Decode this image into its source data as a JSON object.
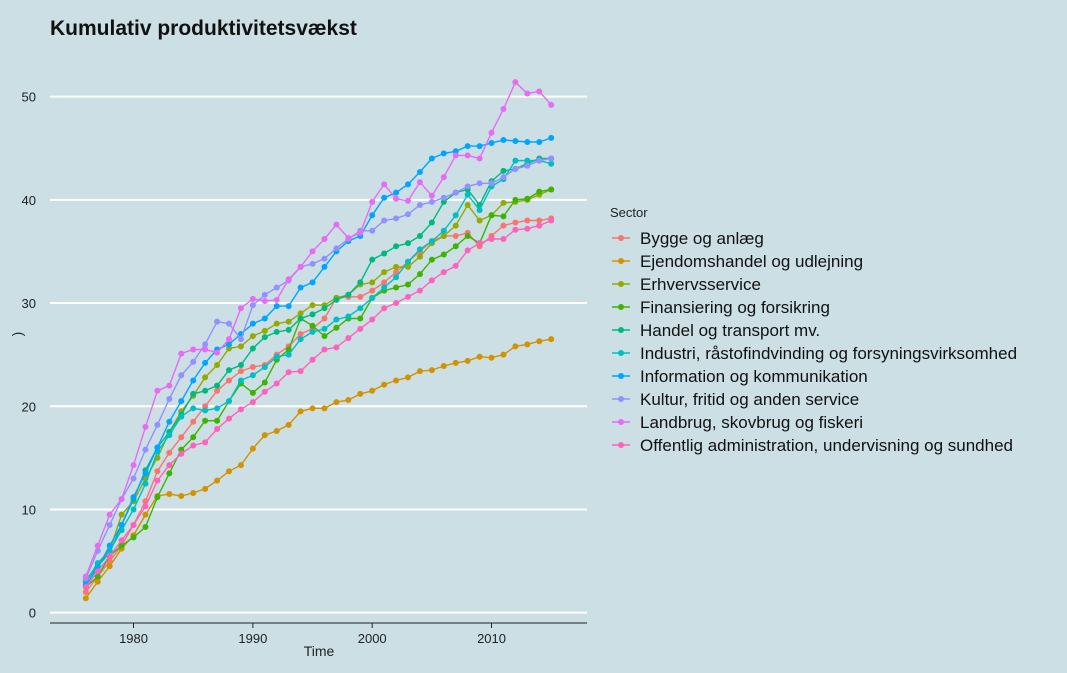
{
  "chart_data": {
    "type": "line",
    "title": "Kumulativ produktivitetsvækst",
    "xlabel": "Time",
    "ylabel": ")",
    "legend_title": "Sector",
    "legend_position": "right",
    "grid": "horizontal major",
    "xlim": [
      1973,
      2018
    ],
    "ylim": [
      -1,
      55
    ],
    "x_ticks": [
      1980,
      1990,
      2000,
      2010
    ],
    "y_ticks": [
      0,
      10,
      20,
      30,
      40,
      50
    ],
    "x": [
      1976,
      1977,
      1978,
      1979,
      1980,
      1981,
      1982,
      1983,
      1984,
      1985,
      1986,
      1987,
      1988,
      1989,
      1990,
      1991,
      1992,
      1993,
      1994,
      1995,
      1996,
      1997,
      1998,
      1999,
      2000,
      2001,
      2002,
      2003,
      2004,
      2005,
      2006,
      2007,
      2008,
      2009,
      2010,
      2011,
      2012,
      2013,
      2014,
      2015
    ],
    "series": [
      {
        "name": "Bygge og anlæg",
        "color": "#f8766d",
        "values": [
          2.0,
          3.5,
          5.0,
          6.5,
          8.5,
          10.8,
          13.7,
          15.5,
          17.0,
          18.5,
          20.0,
          21.5,
          22.5,
          23.4,
          23.8,
          24.0,
          25.0,
          25.8,
          27.0,
          27.5,
          28.5,
          30.5,
          30.6,
          30.6,
          31.2,
          32.0,
          33.0,
          34.0,
          35.0,
          36.0,
          36.5,
          36.5,
          36.8,
          35.5,
          36.5,
          37.5,
          37.8,
          38.0,
          38.0,
          38.2
        ]
      },
      {
        "name": "Ejendomshandel og udlejning",
        "color": "#d39200",
        "values": [
          1.4,
          3.0,
          4.5,
          6.2,
          7.5,
          9.5,
          11.3,
          11.5,
          11.3,
          11.6,
          12.0,
          12.8,
          13.7,
          14.3,
          15.9,
          17.2,
          17.6,
          18.2,
          19.5,
          19.8,
          19.8,
          20.4,
          20.6,
          21.2,
          21.5,
          22.1,
          22.5,
          22.8,
          23.4,
          23.5,
          23.9,
          24.2,
          24.4,
          24.8,
          24.7,
          25.0,
          25.8,
          26.0,
          26.3,
          26.5
        ]
      },
      {
        "name": "Erhvervsservice",
        "color": "#93aa00",
        "values": [
          3.2,
          4.5,
          6.0,
          9.5,
          10.8,
          13.0,
          15.0,
          17.5,
          19.5,
          21.0,
          22.8,
          24.0,
          25.6,
          25.8,
          26.8,
          27.3,
          28.0,
          28.2,
          29.0,
          29.8,
          29.8,
          30.5,
          30.8,
          31.8,
          32.0,
          33.0,
          33.5,
          33.5,
          34.5,
          35.8,
          36.5,
          37.5,
          39.5,
          38.0,
          38.5,
          39.7,
          39.8,
          40.0,
          40.5,
          41.0
        ]
      },
      {
        "name": "Finansiering og forsikring",
        "color": "#3eb300",
        "values": [
          2.5,
          3.5,
          5.5,
          6.5,
          7.3,
          8.3,
          11.2,
          13.5,
          15.8,
          17.0,
          18.6,
          18.6,
          20.5,
          22.2,
          21.3,
          22.3,
          24.5,
          25.5,
          28.5,
          27.8,
          26.8,
          27.6,
          28.5,
          28.5,
          30.5,
          31.2,
          31.5,
          31.8,
          32.8,
          34.2,
          34.7,
          35.5,
          36.5,
          35.8,
          38.5,
          38.4,
          40.0,
          40.1,
          40.8,
          41.0
        ]
      },
      {
        "name": "Handel og transport mv.",
        "color": "#00ba7d",
        "values": [
          3.0,
          4.5,
          5.8,
          8.5,
          11.0,
          13.8,
          16.0,
          17.5,
          19.2,
          21.2,
          21.5,
          22.0,
          23.5,
          24.0,
          25.6,
          26.7,
          27.2,
          27.4,
          28.5,
          28.9,
          29.5,
          30.3,
          30.8,
          32.0,
          34.2,
          34.8,
          35.5,
          35.8,
          36.5,
          37.8,
          39.8,
          40.7,
          41.0,
          39.5,
          41.8,
          42.8,
          43.0,
          43.5,
          44.0,
          44.0
        ]
      },
      {
        "name": "Industri, råstofindvinding og forsyningsvirksomhed",
        "color": "#00bfc4",
        "values": [
          3.0,
          4.8,
          6.0,
          8.0,
          10.0,
          12.5,
          15.6,
          17.2,
          19.0,
          19.8,
          19.6,
          19.8,
          20.5,
          22.5,
          23.0,
          23.8,
          24.8,
          25.0,
          26.5,
          27.2,
          27.5,
          28.4,
          28.7,
          29.5,
          30.5,
          31.5,
          32.5,
          34.0,
          35.2,
          36.0,
          37.0,
          38.5,
          40.5,
          39.0,
          41.3,
          42.0,
          43.8,
          43.8,
          43.8,
          43.5
        ]
      },
      {
        "name": "Information og kommunikation",
        "color": "#00a5ff",
        "values": [
          2.7,
          4.3,
          6.5,
          8.5,
          11.2,
          13.5,
          16.0,
          18.5,
          20.5,
          22.5,
          24.2,
          25.5,
          26.0,
          27.0,
          28.0,
          28.5,
          29.7,
          29.7,
          31.5,
          32.0,
          33.5,
          35.0,
          36.0,
          36.5,
          38.5,
          40.2,
          40.7,
          41.5,
          42.7,
          44.0,
          44.5,
          44.7,
          45.2,
          45.2,
          45.5,
          45.8,
          45.7,
          45.6,
          45.6,
          46.0
        ]
      },
      {
        "name": "Kultur, fritid og anden service",
        "color": "#9590ff",
        "values": [
          3.3,
          6.0,
          8.5,
          11.0,
          13.0,
          15.8,
          18.2,
          20.7,
          23.0,
          24.3,
          26.0,
          28.2,
          28.0,
          26.5,
          29.8,
          30.8,
          31.5,
          32.2,
          33.5,
          33.8,
          34.3,
          35.3,
          36.2,
          37.0,
          37.0,
          38.0,
          38.2,
          38.6,
          39.5,
          39.8,
          40.2,
          40.7,
          41.3,
          41.6,
          41.6,
          42.2,
          43.0,
          43.3,
          43.8,
          44.0
        ]
      },
      {
        "name": "Landbrug, skovbrug og fiskeri",
        "color": "#e76bf3",
        "values": [
          3.5,
          6.5,
          9.5,
          11.0,
          14.3,
          18.0,
          21.5,
          22.0,
          25.1,
          25.5,
          25.5,
          25.2,
          26.5,
          29.5,
          30.4,
          30.2,
          30.3,
          32.3,
          33.5,
          35.0,
          36.2,
          37.6,
          36.3,
          36.8,
          39.8,
          41.5,
          40.1,
          39.9,
          41.7,
          40.4,
          42.2,
          44.3,
          44.3,
          44.0,
          46.5,
          48.8,
          51.4,
          50.3,
          50.5,
          49.2
        ]
      },
      {
        "name": "Offentlig administration, undervisning og sundhed",
        "color": "#ff62bc",
        "values": [
          2.5,
          4.0,
          5.5,
          7.0,
          8.5,
          10.3,
          12.8,
          14.3,
          15.4,
          16.2,
          16.5,
          17.8,
          18.8,
          19.7,
          20.4,
          21.4,
          22.2,
          23.3,
          23.4,
          24.5,
          25.5,
          25.7,
          26.6,
          27.5,
          28.4,
          29.5,
          30.0,
          30.6,
          31.2,
          32.2,
          33.0,
          33.6,
          35.1,
          35.8,
          36.2,
          36.2,
          37.1,
          37.2,
          37.5,
          38.0
        ]
      }
    ]
  }
}
